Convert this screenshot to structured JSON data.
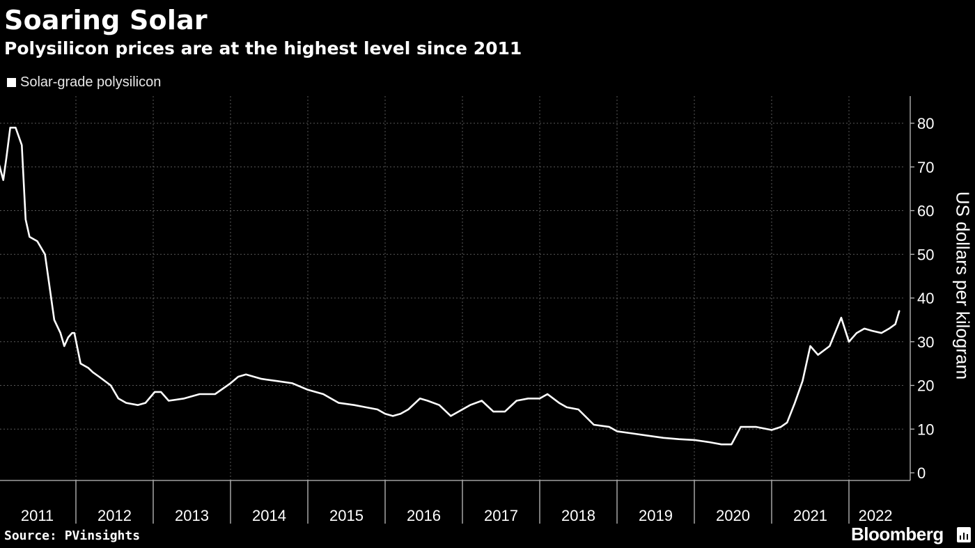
{
  "header": {
    "title": "Soaring Solar",
    "subtitle": "Polysilicon prices are at the highest level since 2011"
  },
  "footer": {
    "source": "Source: PVinsights",
    "logo": "Bloomberg"
  },
  "colors": {
    "background": "#000000",
    "line": "#ffffff",
    "text": "#ffffff",
    "grid": "#5a5a5a"
  },
  "chart_data": {
    "type": "line",
    "title": "Soaring Solar",
    "subtitle": "Polysilicon prices are at the highest level since 2011",
    "xlabel": "",
    "ylabel": "US dollars per kilogram",
    "ylim": [
      0,
      85
    ],
    "yticks": [
      0,
      10,
      20,
      30,
      40,
      50,
      60,
      70,
      80
    ],
    "xlim": [
      2011.0,
      2022.65
    ],
    "xticks": [
      "2011",
      "2012",
      "2013",
      "2014",
      "2015",
      "2016",
      "2017",
      "2018",
      "2019",
      "2020",
      "2021",
      "2022"
    ],
    "grid": true,
    "legend_position": "top-left",
    "series": [
      {
        "name": "Solar-grade polysilicon",
        "color": "#ffffff",
        "x": [
          2011.0,
          2011.06,
          2011.1,
          2011.15,
          2011.22,
          2011.3,
          2011.35,
          2011.4,
          2011.5,
          2011.6,
          2011.72,
          2011.8,
          2011.85,
          2011.9,
          2011.95,
          2011.98,
          2012.06,
          2012.16,
          2012.22,
          2012.3,
          2012.45,
          2012.55,
          2012.65,
          2012.8,
          2012.9,
          2013.02,
          2013.1,
          2013.2,
          2013.4,
          2013.6,
          2013.8,
          2014.0,
          2014.1,
          2014.2,
          2014.4,
          2014.6,
          2014.8,
          2015.0,
          2015.2,
          2015.4,
          2015.6,
          2015.75,
          2015.9,
          2016.0,
          2016.1,
          2016.2,
          2016.3,
          2016.45,
          2016.55,
          2016.7,
          2016.85,
          2017.0,
          2017.1,
          2017.25,
          2017.4,
          2017.55,
          2017.7,
          2017.85,
          2018.0,
          2018.1,
          2018.25,
          2018.35,
          2018.5,
          2018.7,
          2018.9,
          2019.0,
          2019.2,
          2019.4,
          2019.6,
          2019.8,
          2020.0,
          2020.2,
          2020.35,
          2020.48,
          2020.6,
          2020.8,
          2021.0,
          2021.12,
          2021.2,
          2021.3,
          2021.4,
          2021.5,
          2021.6,
          2021.75,
          2021.9,
          2022.0,
          2022.1,
          2022.2,
          2022.3,
          2022.42,
          2022.52,
          2022.6,
          2022.65
        ],
        "y": [
          71,
          67,
          72,
          79,
          79,
          75,
          58,
          54,
          53,
          50,
          35,
          32,
          29,
          31,
          32,
          32,
          25,
          24,
          23,
          22,
          20,
          17,
          16,
          15.5,
          16,
          18.5,
          18.5,
          16.5,
          17,
          18,
          18,
          20.5,
          22,
          22.5,
          21.5,
          21,
          20.5,
          19,
          18,
          16,
          15.5,
          15,
          14.5,
          13.5,
          13,
          13.5,
          14.5,
          17,
          16.5,
          15.5,
          13,
          14.5,
          15.5,
          16.5,
          14,
          14,
          16.5,
          17,
          17,
          18,
          16,
          15,
          14.5,
          11,
          10.5,
          9.5,
          9,
          8.5,
          8,
          7.7,
          7.5,
          7,
          6.5,
          6.5,
          10.5,
          10.5,
          9.8,
          10.5,
          11.5,
          16,
          21,
          29,
          27,
          29,
          35.5,
          30,
          32,
          33,
          32.5,
          32,
          33,
          34,
          37
        ]
      }
    ]
  }
}
